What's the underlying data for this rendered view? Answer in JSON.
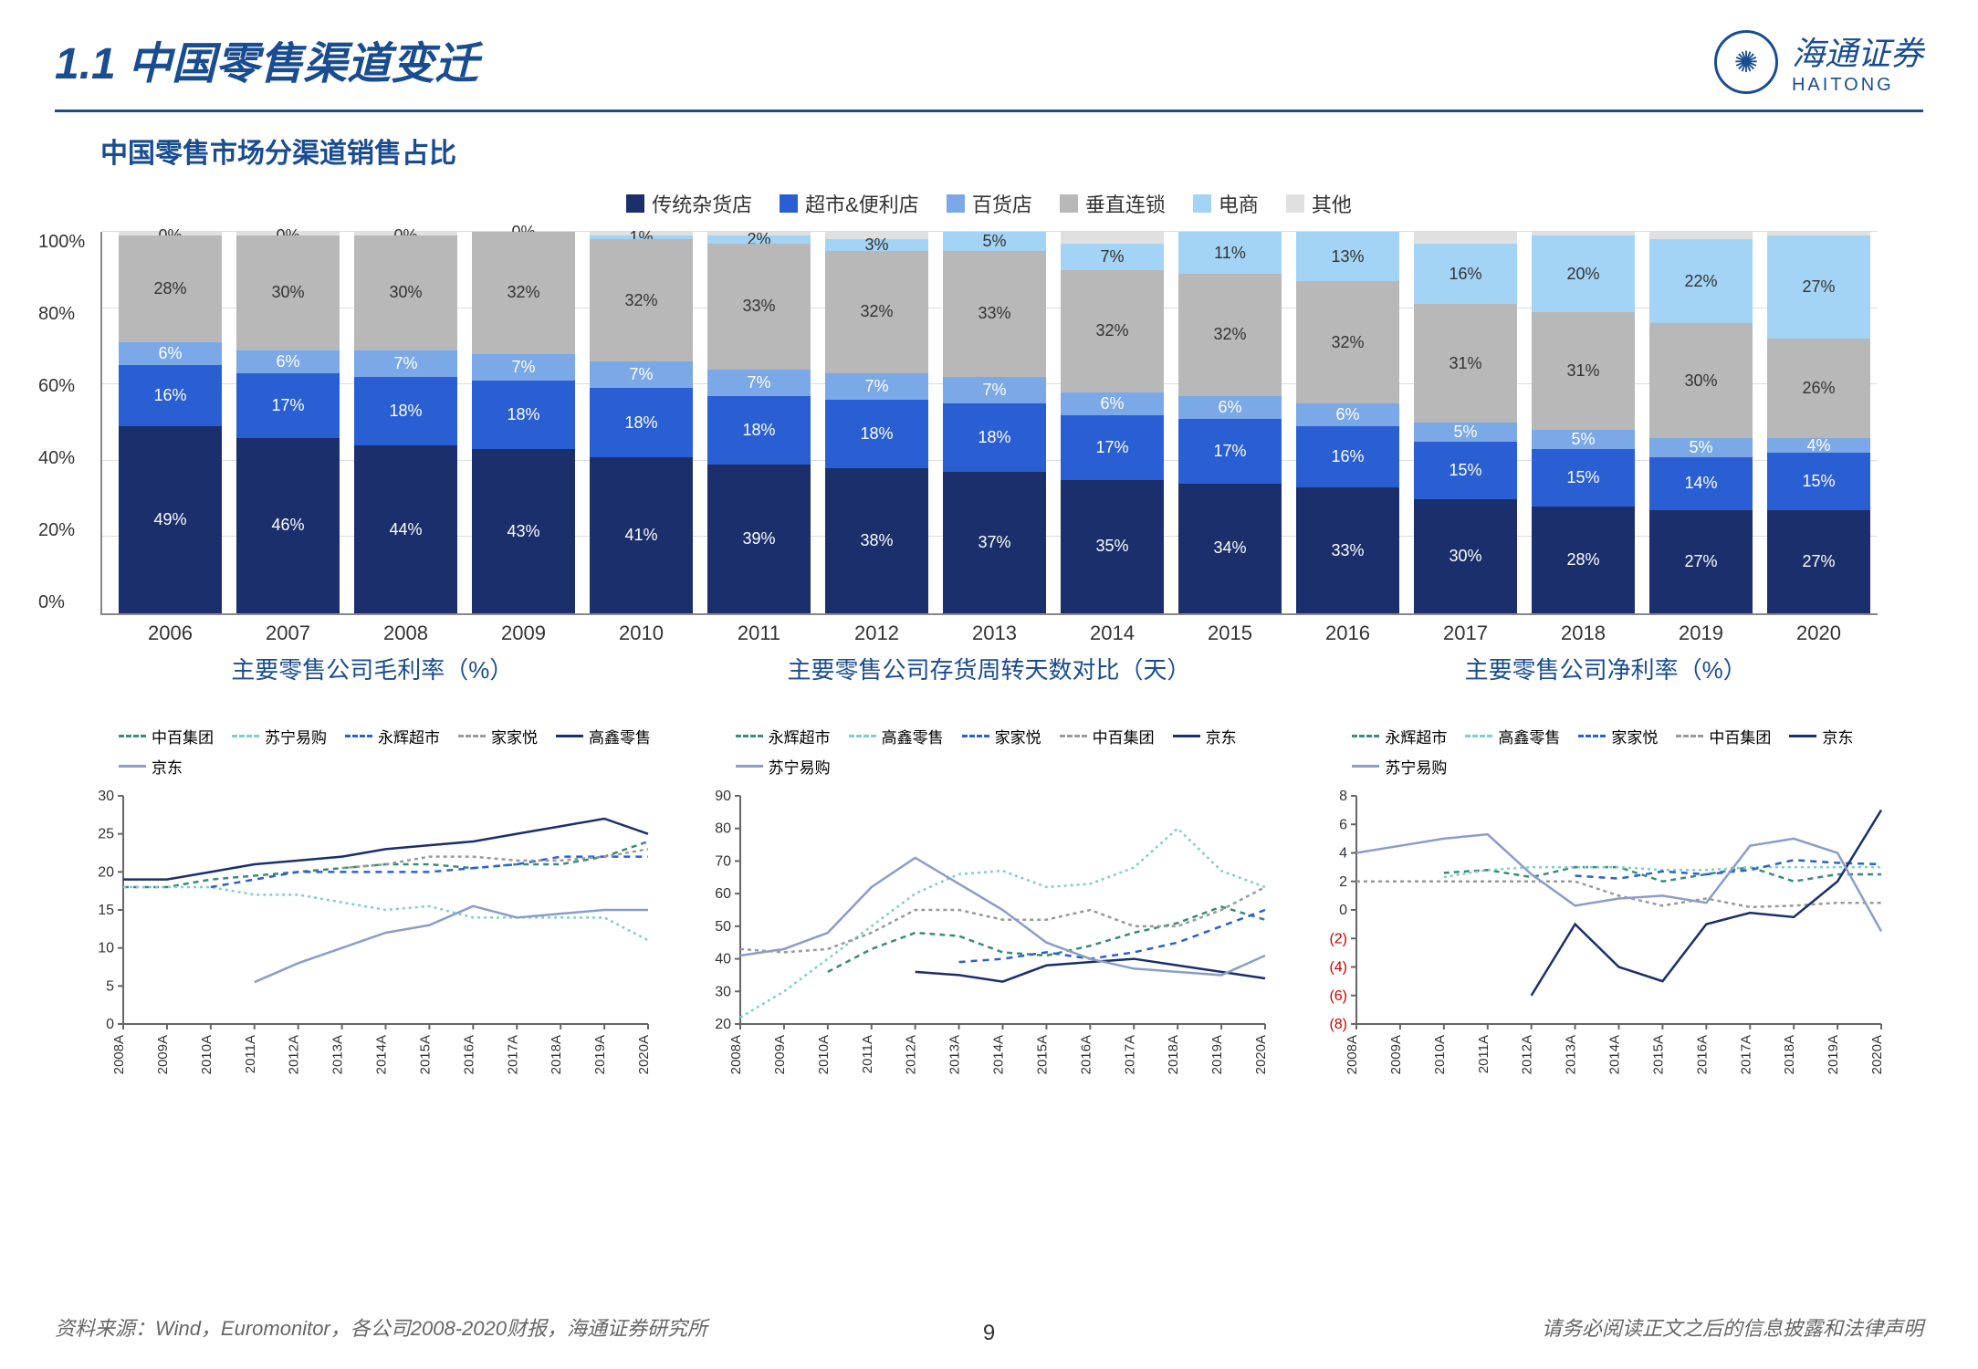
{
  "header": {
    "title": "1.1 中国零售渠道变迁",
    "logo_cn": "海通证券",
    "logo_en": "HAITONG"
  },
  "stacked": {
    "title": "中国零售市场分渠道销售占比",
    "categories": [
      "传统杂货店",
      "超市&便利店",
      "百货店",
      "垂直连锁",
      "电商",
      "其他"
    ],
    "colors": [
      "#1a2f6b",
      "#2a5fd4",
      "#7ba8e6",
      "#b8b8b8",
      "#a3d4f5",
      "#e0e0e0"
    ],
    "ytick_labels": [
      "0%",
      "20%",
      "40%",
      "60%",
      "80%",
      "100%"
    ],
    "years": [
      "2006",
      "2007",
      "2008",
      "2009",
      "2010",
      "2011",
      "2012",
      "2013",
      "2014",
      "2015",
      "2016",
      "2017",
      "2018",
      "2019",
      "2020"
    ],
    "data": [
      {
        "vals": [
          49,
          16,
          6,
          28,
          0,
          1
        ],
        "labels": [
          "49%",
          "16%",
          "6%",
          "28%",
          "0%",
          ""
        ]
      },
      {
        "vals": [
          46,
          17,
          6,
          30,
          0,
          1
        ],
        "labels": [
          "46%",
          "17%",
          "6%",
          "30%",
          "0%",
          ""
        ]
      },
      {
        "vals": [
          44,
          18,
          7,
          30,
          0,
          1
        ],
        "labels": [
          "44%",
          "18%",
          "7%",
          "30%",
          "0%",
          ""
        ]
      },
      {
        "vals": [
          43,
          18,
          7,
          32,
          0,
          0
        ],
        "labels": [
          "43%",
          "18%",
          "7%",
          "32%",
          "0%",
          ""
        ]
      },
      {
        "vals": [
          41,
          18,
          7,
          32,
          1,
          1
        ],
        "labels": [
          "41%",
          "18%",
          "7%",
          "32%",
          "1%",
          ""
        ]
      },
      {
        "vals": [
          39,
          18,
          7,
          33,
          2,
          1
        ],
        "labels": [
          "39%",
          "18%",
          "7%",
          "33%",
          "2%",
          ""
        ]
      },
      {
        "vals": [
          38,
          18,
          7,
          32,
          3,
          2
        ],
        "labels": [
          "38%",
          "18%",
          "7%",
          "32%",
          "3%",
          ""
        ]
      },
      {
        "vals": [
          37,
          18,
          7,
          33,
          5,
          0
        ],
        "labels": [
          "37%",
          "18%",
          "7%",
          "33%",
          "5%",
          ""
        ]
      },
      {
        "vals": [
          35,
          17,
          6,
          32,
          7,
          3
        ],
        "labels": [
          "35%",
          "17%",
          "6%",
          "32%",
          "7%",
          ""
        ]
      },
      {
        "vals": [
          34,
          17,
          6,
          32,
          11,
          0
        ],
        "labels": [
          "34%",
          "17%",
          "6%",
          "32%",
          "11%",
          ""
        ]
      },
      {
        "vals": [
          33,
          16,
          6,
          32,
          13,
          0
        ],
        "labels": [
          "33%",
          "16%",
          "6%",
          "32%",
          "13%",
          ""
        ]
      },
      {
        "vals": [
          30,
          15,
          5,
          31,
          16,
          3
        ],
        "labels": [
          "30%",
          "15%",
          "5%",
          "31%",
          "16%",
          ""
        ]
      },
      {
        "vals": [
          28,
          15,
          5,
          31,
          20,
          1
        ],
        "labels": [
          "28%",
          "15%",
          "5%",
          "31%",
          "20%",
          ""
        ]
      },
      {
        "vals": [
          27,
          14,
          5,
          30,
          22,
          2
        ],
        "labels": [
          "27%",
          "14%",
          "5%",
          "30%",
          "22%",
          ""
        ]
      },
      {
        "vals": [
          27,
          15,
          4,
          26,
          27,
          1
        ],
        "labels": [
          "27%",
          "15%",
          "4%",
          "26%",
          "27%",
          ""
        ]
      }
    ]
  },
  "line_charts": [
    {
      "title": "主要零售公司毛利率（%）",
      "ymin": 0,
      "ymax": 30,
      "ystep": 5,
      "xlabels": [
        "2008A",
        "2009A",
        "2010A",
        "2011A",
        "2012A",
        "2013A",
        "2014A",
        "2015A",
        "2016A",
        "2017A",
        "2018A",
        "2019A",
        "2020A"
      ],
      "series": [
        {
          "name": "中百集团",
          "color": "#3a8a7a",
          "dash": "6,5",
          "vals": [
            18,
            18,
            19,
            19.5,
            20,
            20.5,
            21,
            21,
            20.5,
            21,
            21,
            22,
            24
          ]
        },
        {
          "name": "苏宁易购",
          "color": "#7ecfc8",
          "dash": "3,4",
          "vals": [
            18,
            18,
            18,
            17,
            17,
            16,
            15,
            15.5,
            14,
            14,
            14,
            14,
            11
          ]
        },
        {
          "name": "永辉超市",
          "color": "#2a5fd4",
          "dash": "7,6",
          "vals": [
            null,
            null,
            18,
            19,
            20,
            20,
            20,
            20,
            20.5,
            21,
            22,
            22,
            22
          ]
        },
        {
          "name": "家家悦",
          "color": "#999",
          "dash": "4,4",
          "vals": [
            null,
            null,
            null,
            null,
            null,
            20.5,
            21,
            22,
            22,
            21.5,
            21.5,
            22,
            23
          ]
        },
        {
          "name": "高鑫零售",
          "color": "#1a2f6b",
          "dash": "0",
          "vals": [
            19,
            19,
            20,
            21,
            21.5,
            22,
            23,
            23.5,
            24,
            25,
            26,
            27,
            25
          ]
        },
        {
          "name": "京东",
          "color": "#8a9dc9",
          "dash": "0",
          "vals": [
            null,
            null,
            null,
            5.5,
            8,
            10,
            12,
            13,
            15.5,
            14,
            14.5,
            15,
            15
          ]
        }
      ]
    },
    {
      "title": "主要零售公司存货周转天数对比（天）",
      "ymin": 20,
      "ymax": 90,
      "ystep": 10,
      "xlabels": [
        "2008A",
        "2009A",
        "2010A",
        "2011A",
        "2012A",
        "2013A",
        "2014A",
        "2015A",
        "2016A",
        "2017A",
        "2018A",
        "2019A",
        "2020A"
      ],
      "series": [
        {
          "name": "永辉超市",
          "color": "#3a8a7a",
          "dash": "6,5",
          "vals": [
            null,
            null,
            36,
            43,
            48,
            47,
            42,
            41,
            44,
            48,
            51,
            56,
            52
          ]
        },
        {
          "name": "高鑫零售",
          "color": "#7ecfc8",
          "dash": "3,4",
          "vals": [
            22,
            30,
            40,
            50,
            60,
            66,
            67,
            62,
            63,
            68,
            80,
            67,
            62
          ]
        },
        {
          "name": "家家悦",
          "color": "#2a5fd4",
          "dash": "7,6",
          "vals": [
            null,
            null,
            null,
            null,
            null,
            39,
            40,
            42,
            40,
            42,
            45,
            50,
            55
          ]
        },
        {
          "name": "中百集团",
          "color": "#999",
          "dash": "4,4",
          "vals": [
            43,
            42,
            43,
            48,
            55,
            55,
            52,
            52,
            55,
            50,
            50,
            55,
            62
          ]
        },
        {
          "name": "京东",
          "color": "#1a2f6b",
          "dash": "0",
          "vals": [
            null,
            null,
            null,
            null,
            36,
            35,
            33,
            38,
            39,
            40,
            38,
            36,
            34
          ]
        },
        {
          "name": "苏宁易购",
          "color": "#8a9dc9",
          "dash": "0",
          "vals": [
            41,
            43,
            48,
            62,
            71,
            63,
            55,
            45,
            40,
            37,
            36,
            35,
            41
          ]
        }
      ]
    },
    {
      "title": "主要零售公司净利率（%）",
      "ymin": -8,
      "ymax": 8,
      "ystep": 2,
      "neg_below": 0,
      "xlabels": [
        "2008A",
        "2009A",
        "2010A",
        "2011A",
        "2012A",
        "2013A",
        "2014A",
        "2015A",
        "2016A",
        "2017A",
        "2018A",
        "2019A",
        "2020A"
      ],
      "series": [
        {
          "name": "永辉超市",
          "color": "#3a8a7a",
          "dash": "6,5",
          "vals": [
            null,
            null,
            2.6,
            2.8,
            2.3,
            3,
            3,
            2,
            2.5,
            3,
            2,
            2.5,
            2.5
          ]
        },
        {
          "name": "高鑫零售",
          "color": "#7ecfc8",
          "dash": "3,4",
          "vals": [
            null,
            null,
            2.3,
            2.8,
            3,
            3,
            3,
            2.8,
            2.8,
            3,
            3,
            3,
            3
          ]
        },
        {
          "name": "家家悦",
          "color": "#2a5fd4",
          "dash": "7,6",
          "vals": [
            null,
            null,
            null,
            null,
            null,
            2.4,
            2.2,
            2.7,
            2.5,
            2.8,
            3.5,
            3.3,
            3.2
          ]
        },
        {
          "name": "中百集团",
          "color": "#999",
          "dash": "4,4",
          "vals": [
            2,
            2,
            2,
            2,
            2,
            2,
            1,
            0.3,
            0.8,
            0.2,
            0.3,
            0.5,
            0.5
          ]
        },
        {
          "name": "京东",
          "color": "#1a2f6b",
          "dash": "0",
          "vals": [
            null,
            null,
            null,
            null,
            -6,
            -1,
            -4,
            -5,
            -1,
            -0.2,
            -0.5,
            2,
            7
          ]
        },
        {
          "name": "苏宁易购",
          "color": "#8a9dc9",
          "dash": "0",
          "vals": [
            4,
            4.5,
            5,
            5.3,
            2.5,
            0.3,
            0.8,
            1,
            0.5,
            4.5,
            5,
            4,
            -1.5
          ]
        }
      ]
    }
  ],
  "footer": {
    "source": "资料来源：Wind，Euromonitor，各公司2008-2020财报，海通证券研究所",
    "disclaimer": "请务必阅读正文之后的信息披露和法律声明",
    "page": "9"
  }
}
